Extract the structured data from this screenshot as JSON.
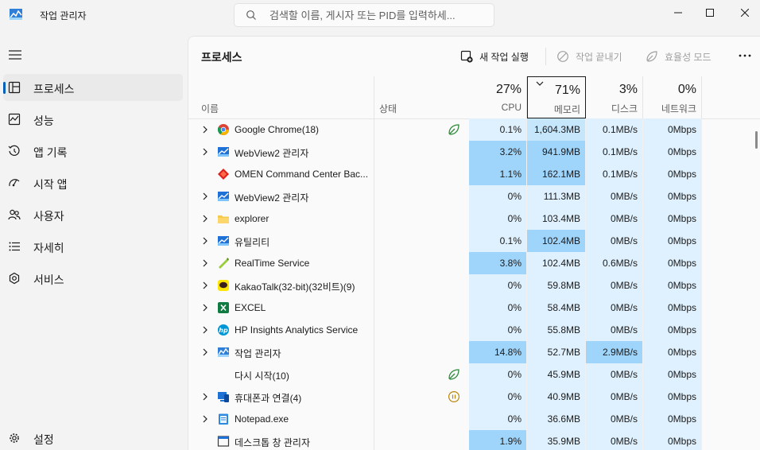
{
  "app": {
    "title": "작업 관리자"
  },
  "search": {
    "placeholder": "검색할 이름, 게시자 또는 PID를 입력하세..."
  },
  "nav": {
    "items": [
      {
        "id": "processes",
        "label": "프로세스",
        "icon": "processes-icon",
        "selected": true
      },
      {
        "id": "performance",
        "label": "성능",
        "icon": "performance-icon",
        "selected": false
      },
      {
        "id": "app-history",
        "label": "앱 기록",
        "icon": "history-icon",
        "selected": false
      },
      {
        "id": "startup",
        "label": "시작 앱",
        "icon": "startup-icon",
        "selected": false
      },
      {
        "id": "users",
        "label": "사용자",
        "icon": "users-icon",
        "selected": false
      },
      {
        "id": "details",
        "label": "자세히",
        "icon": "details-icon",
        "selected": false
      },
      {
        "id": "services",
        "label": "서비스",
        "icon": "services-icon",
        "selected": false
      }
    ],
    "settings_label": "설정"
  },
  "toolbar": {
    "page_title": "프로세스",
    "new_task": "새 작업 실행",
    "end_task": "작업 끝내기",
    "efficiency": "효율성 모드"
  },
  "columns": {
    "name": "이름",
    "status": "상태",
    "cpu": {
      "label": "CPU",
      "pct": "27%"
    },
    "memory": {
      "label": "메모리",
      "pct": "71%"
    },
    "disk": {
      "label": "디스크",
      "pct": "3%"
    },
    "network": {
      "label": "네트워크",
      "pct": "0%"
    }
  },
  "colors": {
    "accent": "#005fb8",
    "heat_low": "#dff1fe",
    "heat_mid": "#c6e6fc",
    "heat_high": "#9fd4fb"
  },
  "processes": [
    {
      "name": "Google Chrome(18)",
      "icon": "chrome-icon",
      "expandable": true,
      "status": "leaf",
      "cpu": "0.1%",
      "memory": "1,604.3MB",
      "disk": "0.1MB/s",
      "network": "0Mbps",
      "heat": [
        "low",
        "mid",
        "low",
        "low"
      ]
    },
    {
      "name": "WebView2 관리자",
      "icon": "webview-icon",
      "expandable": true,
      "status": "",
      "cpu": "3.2%",
      "memory": "941.9MB",
      "disk": "0.1MB/s",
      "network": "0Mbps",
      "heat": [
        "high",
        "high",
        "low",
        "low"
      ]
    },
    {
      "name": "OMEN Command Center Bac...",
      "icon": "omen-icon",
      "expandable": false,
      "status": "",
      "cpu": "1.1%",
      "memory": "162.1MB",
      "disk": "0.1MB/s",
      "network": "0Mbps",
      "heat": [
        "high",
        "high",
        "low",
        "low"
      ]
    },
    {
      "name": "WebView2 관리자",
      "icon": "webview-icon",
      "expandable": true,
      "status": "",
      "cpu": "0%",
      "memory": "111.3MB",
      "disk": "0MB/s",
      "network": "0Mbps",
      "heat": [
        "low",
        "low",
        "low",
        "low"
      ]
    },
    {
      "name": "explorer",
      "icon": "folder-icon",
      "expandable": true,
      "status": "",
      "cpu": "0%",
      "memory": "103.4MB",
      "disk": "0MB/s",
      "network": "0Mbps",
      "heat": [
        "low",
        "low",
        "low",
        "low"
      ]
    },
    {
      "name": "유틸리티",
      "icon": "webview-icon",
      "expandable": true,
      "status": "",
      "cpu": "0.1%",
      "memory": "102.4MB",
      "disk": "0MB/s",
      "network": "0Mbps",
      "heat": [
        "low",
        "high",
        "low",
        "low"
      ]
    },
    {
      "name": "RealTime Service",
      "icon": "realtime-icon",
      "expandable": true,
      "status": "",
      "cpu": "3.8%",
      "memory": "102.4MB",
      "disk": "0.6MB/s",
      "network": "0Mbps",
      "heat": [
        "high",
        "low",
        "low",
        "low"
      ]
    },
    {
      "name": "KakaoTalk(32-bit)(32비트)(9)",
      "icon": "kakao-icon",
      "expandable": true,
      "status": "",
      "cpu": "0%",
      "memory": "59.8MB",
      "disk": "0MB/s",
      "network": "0Mbps",
      "heat": [
        "low",
        "low",
        "low",
        "low"
      ]
    },
    {
      "name": "EXCEL",
      "icon": "excel-icon",
      "expandable": true,
      "status": "",
      "cpu": "0%",
      "memory": "58.4MB",
      "disk": "0MB/s",
      "network": "0Mbps",
      "heat": [
        "low",
        "low",
        "low",
        "low"
      ]
    },
    {
      "name": "HP Insights Analytics Service",
      "icon": "hp-icon",
      "expandable": true,
      "status": "",
      "cpu": "0%",
      "memory": "55.8MB",
      "disk": "0MB/s",
      "network": "0Mbps",
      "heat": [
        "low",
        "low",
        "low",
        "low"
      ]
    },
    {
      "name": "작업 관리자",
      "icon": "taskmgr-icon",
      "expandable": true,
      "status": "",
      "cpu": "14.8%",
      "memory": "52.7MB",
      "disk": "2.9MB/s",
      "network": "0Mbps",
      "heat": [
        "high",
        "low",
        "high",
        "low"
      ]
    },
    {
      "name": "다시 시작(10)",
      "icon": "",
      "expandable": false,
      "status": "leaf",
      "cpu": "0%",
      "memory": "45.9MB",
      "disk": "0MB/s",
      "network": "0Mbps",
      "heat": [
        "low",
        "low",
        "low",
        "low"
      ]
    },
    {
      "name": "휴대폰과 연결(4)",
      "icon": "phone-link-icon",
      "expandable": true,
      "status": "pause",
      "cpu": "0%",
      "memory": "40.9MB",
      "disk": "0MB/s",
      "network": "0Mbps",
      "heat": [
        "low",
        "low",
        "low",
        "low"
      ]
    },
    {
      "name": "Notepad.exe",
      "icon": "notepad-icon",
      "expandable": true,
      "status": "",
      "cpu": "0%",
      "memory": "36.6MB",
      "disk": "0MB/s",
      "network": "0Mbps",
      "heat": [
        "low",
        "low",
        "low",
        "low"
      ]
    },
    {
      "name": "데스크톱 창 관리자",
      "icon": "dwm-icon",
      "expandable": false,
      "status": "",
      "cpu": "1.9%",
      "memory": "35.9MB",
      "disk": "0MB/s",
      "network": "0Mbps",
      "heat": [
        "high",
        "low",
        "low",
        "low"
      ]
    }
  ]
}
